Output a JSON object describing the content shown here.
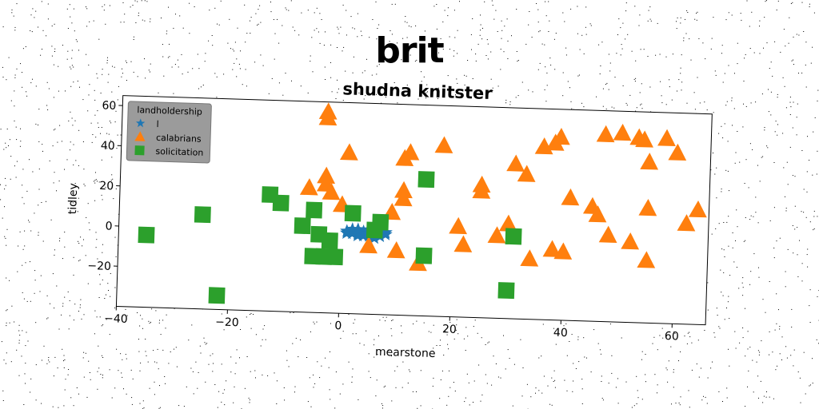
{
  "figure": {
    "title": "brit"
  },
  "colors": {
    "series1": "#1f77b4",
    "series2": "#ff7f0e",
    "series3": "#2ca02c"
  },
  "chart_data": {
    "type": "scatter",
    "title": "shudna knitster",
    "xlabel": "mearstone",
    "ylabel": "tidley",
    "xlim": [
      -40,
      66
    ],
    "ylim": [
      -40,
      65
    ],
    "xticks": [
      -40,
      -20,
      0,
      20,
      40,
      60
    ],
    "yticks": [
      -20,
      0,
      20,
      40,
      60
    ],
    "grid": false,
    "legend": {
      "title": "landholdership",
      "placement": "top-left"
    },
    "series": [
      {
        "name": "l",
        "marker": "star",
        "color": "#1f77b4",
        "points": [
          [
            1,
            1
          ],
          [
            2,
            2
          ],
          [
            3,
            0
          ],
          [
            4,
            1
          ],
          [
            5,
            2
          ],
          [
            6,
            0
          ],
          [
            7,
            1
          ],
          [
            8,
            0
          ],
          [
            3,
            -1
          ],
          [
            5,
            -1
          ],
          [
            6,
            2
          ],
          [
            2,
            0
          ],
          [
            4,
            -1
          ],
          [
            7,
            -1
          ],
          [
            1,
            0
          ],
          [
            6,
            -2
          ],
          [
            8,
            1
          ],
          [
            3,
            2
          ],
          [
            4,
            0
          ],
          [
            5,
            0
          ]
        ]
      },
      {
        "name": "calabrians",
        "marker": "triangle",
        "color": "#ff7f0e",
        "points": [
          [
            -3,
            60
          ],
          [
            -3,
            57
          ],
          [
            1,
            40
          ],
          [
            -3,
            28
          ],
          [
            -3,
            24
          ],
          [
            -6,
            22
          ],
          [
            -2,
            20
          ],
          [
            0,
            14
          ],
          [
            9,
            11
          ],
          [
            11,
            22
          ],
          [
            11,
            18
          ],
          [
            12,
            41
          ],
          [
            11,
            38
          ],
          [
            14,
            -14
          ],
          [
            5,
            -6
          ],
          [
            10,
            -8
          ],
          [
            18,
            45
          ],
          [
            21,
            5
          ],
          [
            22,
            -4
          ],
          [
            25,
            26
          ],
          [
            25,
            23
          ],
          [
            28,
            1
          ],
          [
            30,
            7
          ],
          [
            31,
            37
          ],
          [
            33,
            32
          ],
          [
            34,
            -10
          ],
          [
            36,
            46
          ],
          [
            38,
            48
          ],
          [
            39,
            51
          ],
          [
            38,
            -5
          ],
          [
            40,
            -6
          ],
          [
            41,
            21
          ],
          [
            45,
            17
          ],
          [
            46,
            13
          ],
          [
            48,
            3
          ],
          [
            47,
            53
          ],
          [
            50,
            54
          ],
          [
            52,
            0
          ],
          [
            53,
            52
          ],
          [
            54,
            51
          ],
          [
            55,
            40
          ],
          [
            55,
            17
          ],
          [
            55,
            -9
          ],
          [
            58,
            52
          ],
          [
            60,
            45
          ],
          [
            62,
            10
          ],
          [
            64,
            17
          ]
        ]
      },
      {
        "name": "solicitation",
        "marker": "square",
        "color": "#2ca02c",
        "points": [
          [
            -35,
            -4
          ],
          [
            -25,
            7
          ],
          [
            -22,
            -33
          ],
          [
            -13,
            18
          ],
          [
            -11,
            14
          ],
          [
            -7,
            3
          ],
          [
            -5,
            11
          ],
          [
            -4,
            -1
          ],
          [
            -5,
            -12
          ],
          [
            -3,
            -12
          ],
          [
            -1,
            -12
          ],
          [
            -2,
            -4
          ],
          [
            2,
            10
          ],
          [
            7,
            6
          ],
          [
            6,
            2
          ],
          [
            15,
            28
          ],
          [
            15,
            -10
          ],
          [
            31,
            1
          ],
          [
            30,
            -26
          ]
        ]
      }
    ]
  }
}
